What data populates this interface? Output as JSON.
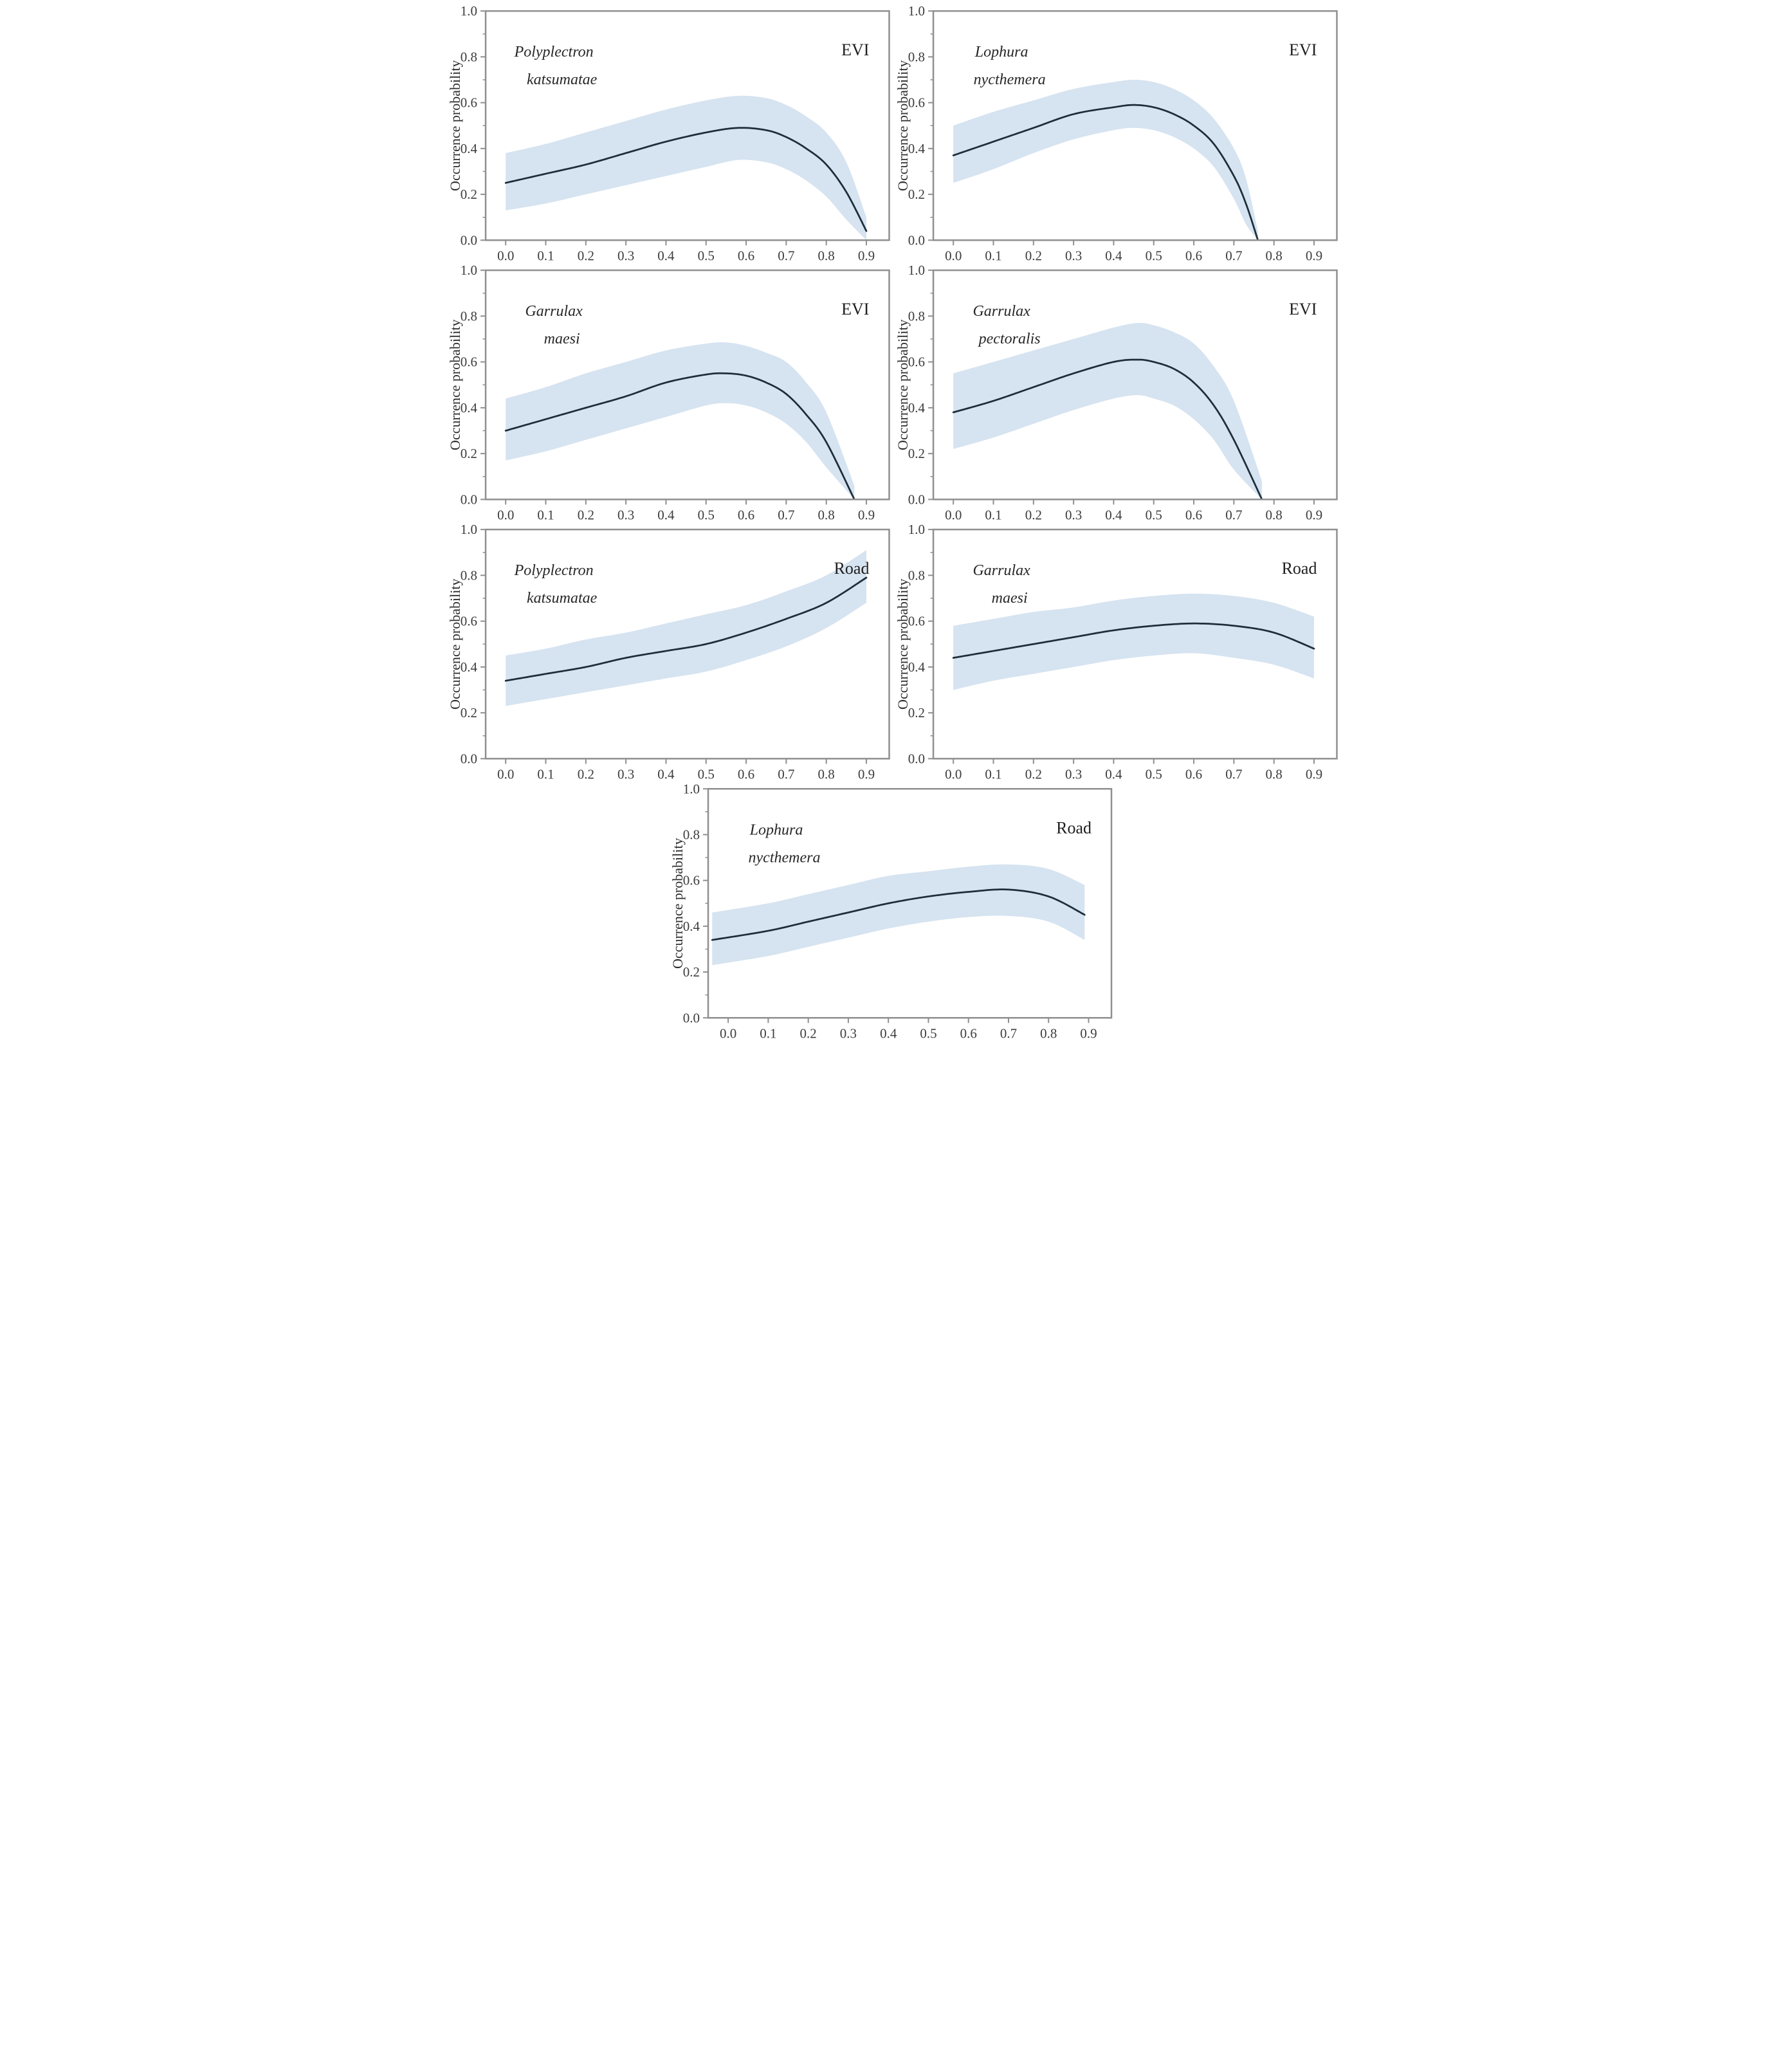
{
  "figure": {
    "ylabel": "Occurrence probability",
    "x_tick_labels": [
      "0.0",
      "0.1",
      "0.2",
      "0.3",
      "0.4",
      "0.5",
      "0.6",
      "0.7",
      "0.8",
      "0.9"
    ],
    "y_tick_labels": [
      "1.0",
      "0.8",
      "0.6",
      "0.4",
      "0.2",
      "0.0"
    ],
    "colors": {
      "band": "#d6e3f0",
      "curve": "#1e2d3a",
      "axis": "#8f8f8f",
      "tick_text": "#3c3c3c",
      "species_text": "#272727"
    }
  },
  "chart_data": [
    {
      "type": "line",
      "panel": 1,
      "species": "Polyplectron katsumatae",
      "species_lines": [
        "Polyplectron",
        "katsumatae"
      ],
      "covariate": "EVI",
      "xlabel": "",
      "ylabel": "Occurrence probability",
      "xlim": [
        -0.05,
        0.957
      ],
      "ylim": [
        0,
        1
      ],
      "x": [
        0.0,
        0.1,
        0.2,
        0.3,
        0.4,
        0.5,
        0.58,
        0.65,
        0.7,
        0.75,
        0.8,
        0.85,
        0.9
      ],
      "mean": [
        0.25,
        0.29,
        0.33,
        0.38,
        0.43,
        0.47,
        0.49,
        0.48,
        0.45,
        0.4,
        0.33,
        0.21,
        0.04
      ],
      "lower": [
        0.13,
        0.16,
        0.2,
        0.24,
        0.28,
        0.32,
        0.35,
        0.34,
        0.31,
        0.26,
        0.19,
        0.09,
        0.0
      ],
      "upper": [
        0.38,
        0.42,
        0.47,
        0.52,
        0.57,
        0.61,
        0.63,
        0.62,
        0.59,
        0.54,
        0.47,
        0.34,
        0.1
      ]
    },
    {
      "type": "line",
      "panel": 2,
      "species": "Lophura nycthemera",
      "species_lines": [
        "Lophura",
        "nycthemera"
      ],
      "covariate": "EVI",
      "xlabel": "",
      "ylabel": "Occurrence probability",
      "xlim": [
        -0.05,
        0.957
      ],
      "ylim": [
        0,
        1
      ],
      "x": [
        0.0,
        0.1,
        0.2,
        0.3,
        0.4,
        0.45,
        0.5,
        0.55,
        0.6,
        0.65,
        0.7,
        0.73,
        0.76
      ],
      "mean": [
        0.37,
        0.43,
        0.49,
        0.55,
        0.58,
        0.59,
        0.58,
        0.55,
        0.5,
        0.42,
        0.28,
        0.16,
        0.0
      ],
      "lower": [
        0.25,
        0.31,
        0.38,
        0.44,
        0.48,
        0.49,
        0.48,
        0.45,
        0.4,
        0.32,
        0.18,
        0.07,
        0.0
      ],
      "upper": [
        0.5,
        0.56,
        0.61,
        0.66,
        0.69,
        0.7,
        0.69,
        0.66,
        0.61,
        0.53,
        0.4,
        0.27,
        0.04
      ]
    },
    {
      "type": "line",
      "panel": 3,
      "species": "Garrulax maesi",
      "species_lines": [
        "Garrulax",
        "maesi"
      ],
      "covariate": "EVI",
      "xlabel": "",
      "ylabel": "Occurrence probability",
      "xlim": [
        -0.05,
        0.957
      ],
      "ylim": [
        0,
        1
      ],
      "x": [
        0.0,
        0.1,
        0.2,
        0.3,
        0.4,
        0.5,
        0.55,
        0.6,
        0.65,
        0.7,
        0.75,
        0.8,
        0.87
      ],
      "mean": [
        0.3,
        0.35,
        0.4,
        0.45,
        0.51,
        0.545,
        0.55,
        0.54,
        0.51,
        0.46,
        0.37,
        0.25,
        0.0
      ],
      "lower": [
        0.17,
        0.21,
        0.26,
        0.31,
        0.36,
        0.41,
        0.42,
        0.41,
        0.38,
        0.33,
        0.25,
        0.14,
        0.0
      ],
      "upper": [
        0.44,
        0.49,
        0.55,
        0.6,
        0.65,
        0.68,
        0.685,
        0.67,
        0.64,
        0.6,
        0.51,
        0.38,
        0.06
      ]
    },
    {
      "type": "line",
      "panel": 4,
      "species": "Garrulax pectoralis",
      "species_lines": [
        "Garrulax",
        "pectoralis"
      ],
      "covariate": "EVI",
      "xlabel": "",
      "ylabel": "Occurrence probability",
      "xlim": [
        -0.05,
        0.957
      ],
      "ylim": [
        0,
        1
      ],
      "x": [
        0.0,
        0.1,
        0.2,
        0.3,
        0.4,
        0.46,
        0.5,
        0.55,
        0.6,
        0.65,
        0.7,
        0.77
      ],
      "mean": [
        0.38,
        0.43,
        0.49,
        0.55,
        0.6,
        0.61,
        0.6,
        0.57,
        0.51,
        0.41,
        0.26,
        0.0
      ],
      "lower": [
        0.22,
        0.27,
        0.33,
        0.39,
        0.44,
        0.455,
        0.44,
        0.41,
        0.35,
        0.26,
        0.13,
        0.0
      ],
      "upper": [
        0.55,
        0.6,
        0.65,
        0.7,
        0.75,
        0.77,
        0.76,
        0.73,
        0.68,
        0.58,
        0.43,
        0.08
      ]
    },
    {
      "type": "line",
      "panel": 5,
      "species": "Polyplectron katsumatae",
      "species_lines": [
        "Polyplectron",
        "katsumatae"
      ],
      "covariate": "Road",
      "xlabel": "",
      "ylabel": "Occurrence probability",
      "xlim": [
        -0.05,
        0.957
      ],
      "ylim": [
        0,
        1
      ],
      "x": [
        0.0,
        0.1,
        0.2,
        0.3,
        0.4,
        0.5,
        0.6,
        0.7,
        0.8,
        0.9
      ],
      "mean": [
        0.34,
        0.37,
        0.4,
        0.44,
        0.47,
        0.5,
        0.55,
        0.61,
        0.68,
        0.79
      ],
      "lower": [
        0.23,
        0.26,
        0.29,
        0.32,
        0.35,
        0.38,
        0.43,
        0.49,
        0.57,
        0.68
      ],
      "upper": [
        0.45,
        0.48,
        0.52,
        0.55,
        0.59,
        0.63,
        0.67,
        0.73,
        0.8,
        0.91
      ]
    },
    {
      "type": "line",
      "panel": 6,
      "species": "Garrulax maesi",
      "species_lines": [
        "Garrulax",
        "maesi"
      ],
      "covariate": "Road",
      "xlabel": "",
      "ylabel": "Occurrence probability",
      "xlim": [
        -0.05,
        0.957
      ],
      "ylim": [
        0,
        1
      ],
      "x": [
        0.0,
        0.1,
        0.2,
        0.3,
        0.4,
        0.5,
        0.6,
        0.7,
        0.8,
        0.9
      ],
      "mean": [
        0.44,
        0.47,
        0.5,
        0.53,
        0.56,
        0.58,
        0.59,
        0.58,
        0.55,
        0.48
      ],
      "lower": [
        0.3,
        0.34,
        0.37,
        0.4,
        0.43,
        0.45,
        0.46,
        0.44,
        0.41,
        0.35
      ],
      "upper": [
        0.58,
        0.61,
        0.64,
        0.66,
        0.69,
        0.71,
        0.72,
        0.71,
        0.68,
        0.62
      ]
    },
    {
      "type": "line",
      "panel": 7,
      "species": "Lophura nycthemera",
      "species_lines": [
        "Lophura",
        "nycthemera"
      ],
      "covariate": "Road",
      "xlabel": "",
      "ylabel": "Occurrence probability",
      "xlim": [
        -0.05,
        0.957
      ],
      "ylim": [
        0,
        1
      ],
      "x": [
        -0.04,
        0.1,
        0.2,
        0.3,
        0.4,
        0.5,
        0.6,
        0.7,
        0.8,
        0.89
      ],
      "mean": [
        0.34,
        0.38,
        0.42,
        0.46,
        0.5,
        0.53,
        0.55,
        0.56,
        0.53,
        0.45
      ],
      "lower": [
        0.23,
        0.27,
        0.31,
        0.35,
        0.39,
        0.42,
        0.44,
        0.445,
        0.42,
        0.34
      ],
      "upper": [
        0.46,
        0.5,
        0.54,
        0.58,
        0.62,
        0.64,
        0.66,
        0.67,
        0.65,
        0.58
      ]
    }
  ]
}
